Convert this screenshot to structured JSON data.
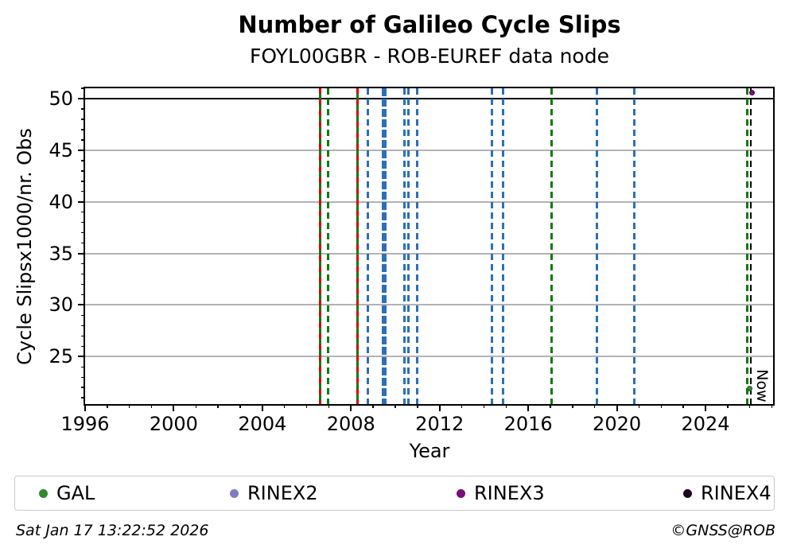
{
  "title": "Number of Galileo Cycle Slips",
  "subtitle": "FOYL00GBR - ROB-EUREF data node",
  "footer": {
    "timestamp": "Sat Jan 17 13:22:52 2026",
    "credit": "©GNSS@ROB"
  },
  "legend": [
    {
      "label": "GAL",
      "color": "#2e8b2e"
    },
    {
      "label": "RINEX2",
      "color": "#7d7bc4"
    },
    {
      "label": "RINEX3",
      "color": "#7b0c7b"
    },
    {
      "label": "RINEX4",
      "color": "#200520"
    }
  ],
  "chart_data": {
    "type": "line",
    "title": "Number of Galileo Cycle Slips",
    "subtitle": "FOYL00GBR - ROB-EUREF data node",
    "xlabel": "Year",
    "ylabel": "Cycle Slipsx1000/nr. Obs",
    "xlim": [
      1996,
      2027.05
    ],
    "ylim": [
      20.4,
      51.0
    ],
    "xticks_major": [
      1996,
      2000,
      2004,
      2008,
      2012,
      2016,
      2020,
      2024
    ],
    "xtick_minor_step": 1,
    "yticks_major": [
      25,
      30,
      35,
      40,
      45,
      50
    ],
    "ytick_minor_step": 1,
    "grid": true,
    "legend_position": "bottom",
    "colors": {
      "green": "#0a7d0a",
      "red": "#dd0000",
      "blue": "#2a6fc0",
      "grid": "#b3b3b3"
    },
    "hline": {
      "y": 50,
      "color": "#000000",
      "x0": 1996,
      "x1": 2027.05
    },
    "vlines": [
      {
        "x": 2006.6,
        "style": "green-solid-red-dash"
      },
      {
        "x": 2006.95,
        "style": "green-dash"
      },
      {
        "x": 2008.3,
        "style": "green-solid-red-dash"
      },
      {
        "x": 2008.75,
        "style": "blue-dash"
      },
      {
        "x": 2009.5,
        "style": "blue-dash-thick"
      },
      {
        "x": 2010.4,
        "style": "blue-dash"
      },
      {
        "x": 2010.6,
        "style": "blue-dash"
      },
      {
        "x": 2011.0,
        "style": "blue-dash"
      },
      {
        "x": 2014.35,
        "style": "blue-dash"
      },
      {
        "x": 2014.85,
        "style": "blue-dash"
      },
      {
        "x": 2017.05,
        "style": "green-dash"
      },
      {
        "x": 2019.1,
        "style": "blue-dash"
      },
      {
        "x": 2020.8,
        "style": "blue-dash"
      },
      {
        "x": 2025.87,
        "style": "green-dash"
      }
    ],
    "now_line": {
      "x": 2026.05,
      "label": "Now",
      "color": "#000000"
    },
    "points": [
      {
        "series": "GAL",
        "x": 2026.0,
        "y": 21.9,
        "color": "#2e8b2e"
      },
      {
        "series": "RINEX3",
        "x": 2026.1,
        "y": 50.55,
        "color": "#7b0c7b"
      }
    ]
  }
}
